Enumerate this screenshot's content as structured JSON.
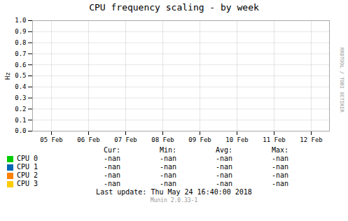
{
  "chart_data": {
    "type": "line",
    "title": "CPU frequency scaling - by week",
    "y_label": "Hz",
    "categories": [
      "05 Feb",
      "06 Feb",
      "07 Feb",
      "08 Feb",
      "09 Feb",
      "10 Feb",
      "11 Feb",
      "12 Feb"
    ],
    "series": [
      {
        "name": "CPU 0",
        "color": "#00cc00",
        "values": [
          null,
          null,
          null,
          null,
          null,
          null,
          null,
          null
        ],
        "stats": [
          "-nan",
          "-nan",
          "-nan",
          "-nan"
        ]
      },
      {
        "name": "CPU 1",
        "color": "#0066b3",
        "values": [
          null,
          null,
          null,
          null,
          null,
          null,
          null,
          null
        ],
        "stats": [
          "-nan",
          "-nan",
          "-nan",
          "-nan"
        ]
      },
      {
        "name": "CPU 2",
        "color": "#ff8000",
        "values": [
          null,
          null,
          null,
          null,
          null,
          null,
          null,
          null
        ],
        "stats": [
          "-nan",
          "-nan",
          "-nan",
          "-nan"
        ]
      },
      {
        "name": "CPU 3",
        "color": "#ffcc00",
        "values": [
          null,
          null,
          null,
          null,
          null,
          null,
          null,
          null
        ],
        "stats": [
          "-nan",
          "-nan",
          "-nan",
          "-nan"
        ]
      }
    ],
    "stat_headers": [
      "Cur:",
      "Min:",
      "Avg:",
      "Max:"
    ],
    "ylim": [
      0.0,
      1.0
    ],
    "yticks": [
      {
        "value": 0,
        "label": "0.0"
      },
      0.1,
      0.2,
      0.3,
      0.4,
      0.5,
      0.6,
      0.7,
      0.8,
      0.9,
      {
        "value": 1,
        "label": "1.0"
      }
    ],
    "grid": true,
    "annotations": [
      "RRDTOOL / TOBI OETIKER",
      "Last update:  Thu May 24 16:40:00 2018",
      "Munin 2.0.33-1"
    ]
  }
}
